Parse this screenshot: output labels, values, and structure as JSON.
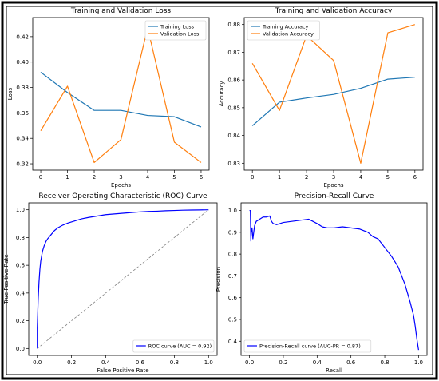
{
  "chart_data": [
    {
      "type": "line",
      "title": "Training and Validation Loss",
      "xlabel": "Epochs",
      "ylabel": "Loss",
      "xlim": [
        -0.3,
        6.3
      ],
      "ylim": [
        0.315,
        0.435
      ],
      "xticks": [
        0,
        1,
        2,
        3,
        4,
        5,
        6
      ],
      "yticks": [
        0.32,
        0.34,
        0.36,
        0.38,
        0.4,
        0.42
      ],
      "ytick_labels": [
        "0.32",
        "0.34",
        "0.36",
        "0.38",
        "0.40",
        "0.42"
      ],
      "legend": "top-right",
      "series": [
        {
          "name": "Training Loss",
          "color": "#1f77b4",
          "x": [
            0,
            1,
            2,
            3,
            4,
            5,
            6
          ],
          "y": [
            0.392,
            0.376,
            0.362,
            0.362,
            0.358,
            0.357,
            0.349
          ]
        },
        {
          "name": "Validation Loss",
          "color": "#ff7f0e",
          "x": [
            0,
            1,
            2,
            3,
            4,
            5,
            6
          ],
          "y": [
            0.346,
            0.381,
            0.321,
            0.339,
            0.427,
            0.337,
            0.321
          ]
        }
      ]
    },
    {
      "type": "line",
      "title": "Training and Validation Accuracy",
      "xlabel": "Epochs",
      "ylabel": "Accuracy",
      "xlim": [
        -0.3,
        6.3
      ],
      "ylim": [
        0.8275,
        0.8825
      ],
      "xticks": [
        0,
        1,
        2,
        3,
        4,
        5,
        6
      ],
      "yticks": [
        0.83,
        0.84,
        0.85,
        0.86,
        0.87,
        0.88
      ],
      "ytick_labels": [
        "0.83",
        "0.84",
        "0.85",
        "0.86",
        "0.87",
        "0.88"
      ],
      "legend": "top-left",
      "series": [
        {
          "name": "Training Accuracy",
          "color": "#1f77b4",
          "x": [
            0,
            1,
            2,
            3,
            4,
            5,
            6
          ],
          "y": [
            0.8435,
            0.852,
            0.8535,
            0.8548,
            0.857,
            0.8603,
            0.861
          ]
        },
        {
          "name": "Validation Accuracy",
          "color": "#ff7f0e",
          "x": [
            0,
            1,
            2,
            3,
            4,
            5,
            6
          ],
          "y": [
            0.866,
            0.849,
            0.876,
            0.867,
            0.83,
            0.877,
            0.88
          ]
        }
      ]
    },
    {
      "type": "line",
      "title": "Receiver Operating Characteristic (ROC) Curve",
      "xlabel": "False Positive Rate",
      "ylabel": "True Positive Rate",
      "xlim": [
        -0.05,
        1.05
      ],
      "ylim": [
        -0.05,
        1.05
      ],
      "xticks": [
        0.0,
        0.2,
        0.4,
        0.6,
        0.8,
        1.0
      ],
      "yticks": [
        0.0,
        0.2,
        0.4,
        0.6,
        0.8,
        1.0
      ],
      "xtick_labels": [
        "0.0",
        "0.2",
        "0.4",
        "0.6",
        "0.8",
        "1.0"
      ],
      "ytick_labels": [
        "0.0",
        "0.2",
        "0.4",
        "0.6",
        "0.8",
        "1.0"
      ],
      "legend": "bottom-right",
      "series": [
        {
          "name": "ROC curve (AUC = 0.92)",
          "color": "#0000ff",
          "x": [
            0.0,
            0.0,
            0.005,
            0.01,
            0.015,
            0.02,
            0.03,
            0.04,
            0.05,
            0.06,
            0.08,
            0.1,
            0.12,
            0.15,
            0.18,
            0.22,
            0.26,
            0.3,
            0.35,
            0.4,
            0.45,
            0.5,
            0.55,
            0.6,
            0.65,
            0.7,
            0.75,
            0.8,
            0.85,
            0.9,
            0.95,
            1.0
          ],
          "y": [
            0.0,
            0.15,
            0.35,
            0.48,
            0.57,
            0.63,
            0.7,
            0.74,
            0.77,
            0.79,
            0.82,
            0.85,
            0.87,
            0.89,
            0.905,
            0.92,
            0.935,
            0.945,
            0.955,
            0.965,
            0.97,
            0.975,
            0.98,
            0.985,
            0.988,
            0.99,
            0.993,
            0.995,
            0.997,
            0.998,
            0.999,
            1.0
          ]
        },
        {
          "name": "",
          "color": "#808080",
          "dashed": true,
          "x": [
            0,
            1
          ],
          "y": [
            0,
            1
          ]
        }
      ]
    },
    {
      "type": "line",
      "title": "Precision-Recall Curve",
      "xlabel": "Recall",
      "ylabel": "Precision",
      "xlim": [
        -0.05,
        1.05
      ],
      "ylim": [
        0.335,
        1.035
      ],
      "xticks": [
        0.0,
        0.2,
        0.4,
        0.6,
        0.8,
        1.0
      ],
      "yticks": [
        0.4,
        0.5,
        0.6,
        0.7,
        0.8,
        0.9,
        1.0
      ],
      "xtick_labels": [
        "0.0",
        "0.2",
        "0.4",
        "0.6",
        "0.8",
        "1.0"
      ],
      "ytick_labels": [
        "0.4",
        "0.5",
        "0.6",
        "0.7",
        "0.8",
        "0.9",
        "1.0"
      ],
      "legend": "bottom-left",
      "series": [
        {
          "name": "Precision-Recall curve (AUC-PR = 0.87)",
          "color": "#0000ff",
          "x": [
            0.0,
            0.005,
            0.008,
            0.01,
            0.015,
            0.02,
            0.03,
            0.04,
            0.06,
            0.08,
            0.1,
            0.12,
            0.13,
            0.14,
            0.16,
            0.2,
            0.25,
            0.3,
            0.35,
            0.4,
            0.43,
            0.46,
            0.5,
            0.55,
            0.6,
            0.65,
            0.7,
            0.73,
            0.76,
            0.8,
            0.84,
            0.88,
            0.92,
            0.95,
            0.97,
            0.98,
            0.99,
            1.0
          ],
          "y": [
            1.0,
            1.0,
            0.86,
            0.9,
            0.92,
            0.87,
            0.93,
            0.95,
            0.96,
            0.97,
            0.97,
            0.975,
            0.95,
            0.94,
            0.935,
            0.945,
            0.95,
            0.955,
            0.96,
            0.94,
            0.925,
            0.92,
            0.92,
            0.925,
            0.92,
            0.915,
            0.9,
            0.88,
            0.87,
            0.83,
            0.79,
            0.74,
            0.66,
            0.58,
            0.52,
            0.47,
            0.41,
            0.36
          ]
        }
      ]
    }
  ]
}
